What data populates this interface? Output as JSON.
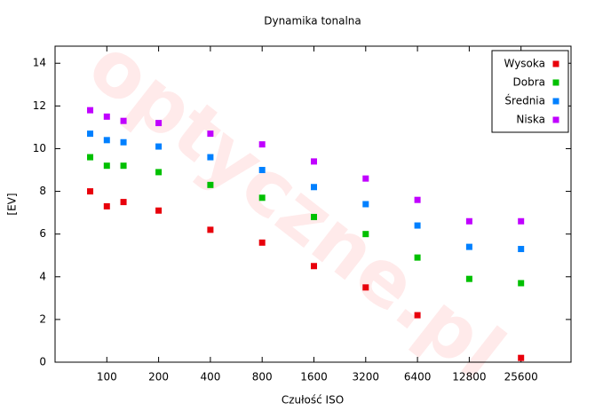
{
  "chart_data": {
    "type": "scatter",
    "title": "Dynamika tonalna",
    "xlabel": "Czułość ISO",
    "ylabel": "[EV]",
    "watermark": "optyczne.pl",
    "x": [
      80,
      100,
      125,
      200,
      400,
      800,
      1600,
      3200,
      6400,
      12800,
      25600
    ],
    "xscale": "log",
    "xlim": [
      50,
      50000
    ],
    "xticks": [
      100,
      200,
      400,
      800,
      1600,
      3200,
      6400,
      12800,
      25600
    ],
    "ylim": [
      0,
      14.8
    ],
    "yticks": [
      0,
      2,
      4,
      6,
      8,
      10,
      12,
      14
    ],
    "grid": false,
    "legend": "upper right",
    "series": [
      {
        "name": "Wysoka",
        "color": "#e8000b",
        "values": [
          8.0,
          7.3,
          7.5,
          7.1,
          6.2,
          5.6,
          4.5,
          3.5,
          2.2,
          null,
          0.2
        ]
      },
      {
        "name": "Dobra",
        "color": "#00c000",
        "values": [
          9.6,
          9.2,
          9.2,
          8.9,
          8.3,
          7.7,
          6.8,
          6.0,
          4.9,
          3.9,
          3.7
        ]
      },
      {
        "name": "Średnia",
        "color": "#0080ff",
        "values": [
          10.7,
          10.4,
          10.3,
          10.1,
          9.6,
          9.0,
          8.2,
          7.4,
          6.4,
          5.4,
          5.3
        ]
      },
      {
        "name": "Niska",
        "color": "#c000ff",
        "values": [
          11.8,
          11.5,
          11.3,
          11.2,
          10.7,
          10.2,
          9.4,
          8.6,
          7.6,
          6.6,
          6.6
        ]
      }
    ]
  }
}
